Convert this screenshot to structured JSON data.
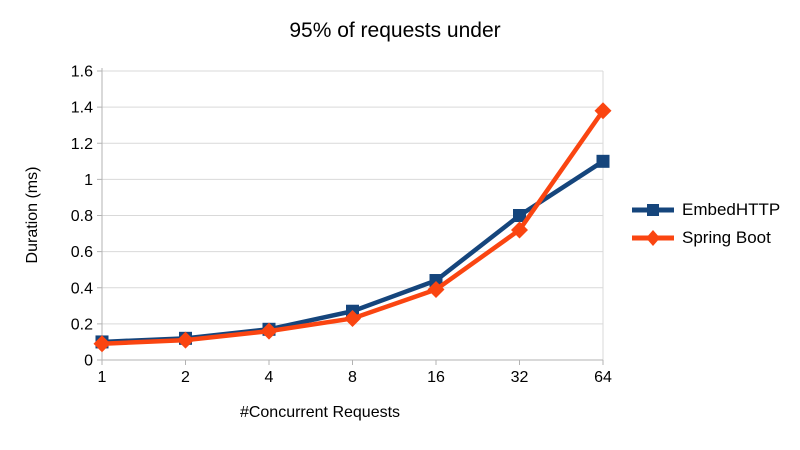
{
  "chart_data": {
    "type": "line",
    "title": "95% of requests under",
    "xlabel": "#Concurrent Requests",
    "ylabel": "Duration (ms)",
    "x_categories": [
      "1",
      "2",
      "4",
      "8",
      "16",
      "32",
      "64"
    ],
    "x_scale": "log2-equal-spacing",
    "ylim": [
      0,
      1.6
    ],
    "ytick_step": 0.2,
    "grid": "horizontal",
    "legend_position": "right",
    "series": [
      {
        "name": "EmbedHTTP",
        "color": "#15457c",
        "marker": "square",
        "values": [
          0.1,
          0.12,
          0.17,
          0.27,
          0.44,
          0.8,
          1.1
        ]
      },
      {
        "name": "Spring Boot",
        "color": "#fa4511",
        "marker": "diamond",
        "values": [
          0.09,
          0.11,
          0.16,
          0.23,
          0.39,
          0.72,
          1.38
        ]
      }
    ],
    "colors": {
      "gridline": "#d9d9d9",
      "axis": "#b3b3b3",
      "text": "#000000",
      "background": "#ffffff"
    }
  }
}
